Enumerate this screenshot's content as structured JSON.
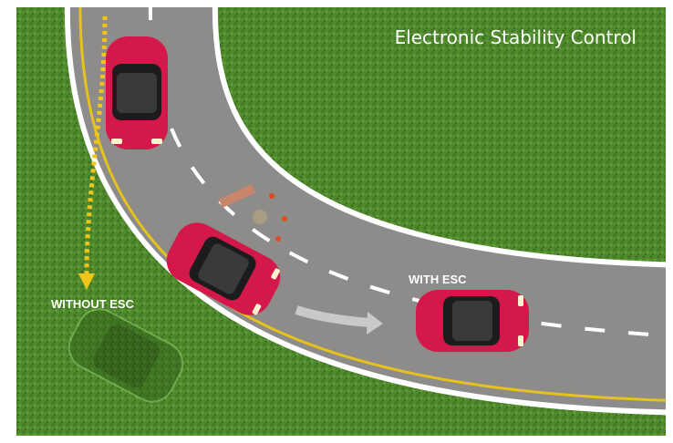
{
  "title": "Electronic Stability Control",
  "labels": {
    "with_esc": "WITH ESC",
    "without_esc": "WITHOUT ESC"
  }
}
